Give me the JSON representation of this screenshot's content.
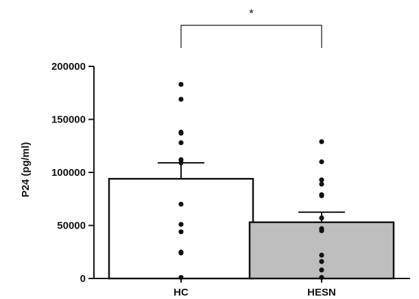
{
  "chart_data": {
    "type": "bar",
    "categories": [
      "HC",
      "HESN"
    ],
    "values": [
      94000,
      53000
    ],
    "error_sem": [
      15000,
      9500
    ],
    "bar_colors": [
      "#ffffff",
      "#bebebe"
    ],
    "points": [
      [
        183000,
        169000,
        138000,
        137000,
        128000,
        112000,
        109000,
        70000,
        51000,
        44000,
        25000,
        24000,
        1000
      ],
      [
        129000,
        110000,
        93000,
        89000,
        79000,
        78000,
        57000,
        47000,
        45000,
        22000,
        16000,
        8000,
        1000
      ]
    ],
    "ylabel": "P24 (pg/ml)",
    "xlabel": "",
    "ylim": [
      0,
      200000
    ],
    "yticks": [
      "0",
      "50000",
      "100000",
      "150000",
      "200000"
    ],
    "ytick_values": [
      0,
      50000,
      100000,
      150000,
      200000
    ],
    "significance": {
      "label": "*",
      "between": [
        "HC",
        "HESN"
      ]
    },
    "grid": false,
    "legend": "none"
  }
}
